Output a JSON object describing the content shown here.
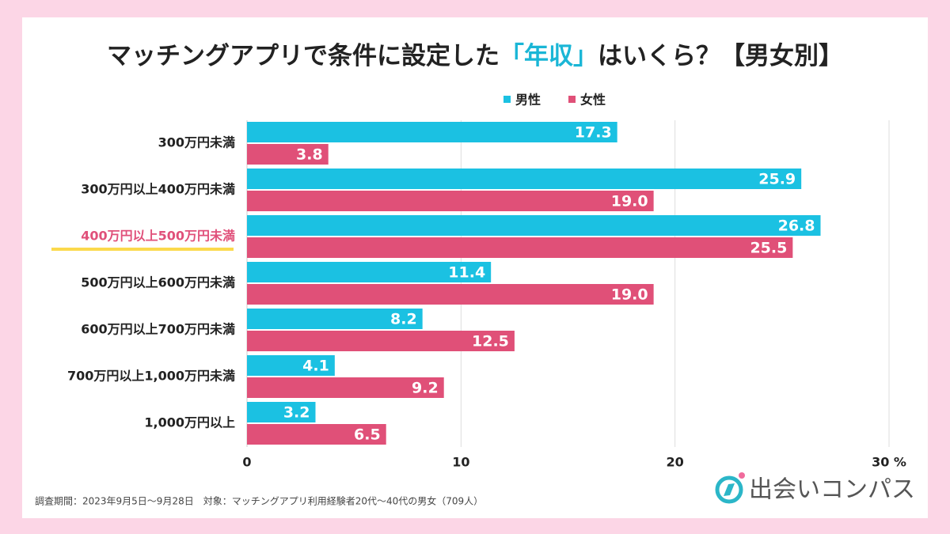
{
  "chart_data": {
    "type": "hbar",
    "title": [
      "マッチングアプリで条件に設定した",
      "「年収」",
      "はいくら？【男女別】"
    ],
    "title_highlight_color": "#1ab6d6",
    "categories": [
      "300万円未満",
      "300万円以上400万円未満",
      "400万円以上500万円未満",
      "500万円以上600万円未満",
      "600万円以上700万円未満",
      "700万円以上1,000万円未満",
      "1,000万円以上"
    ],
    "highlight_category": 2,
    "highlight_color": "#e0507a",
    "series": [
      {
        "name": "男性",
        "color": "#1bc1e2",
        "values": [
          17.3,
          25.9,
          26.8,
          11.4,
          8.2,
          4.1,
          3.2
        ],
        "value_labels": [
          "17.3",
          "25.9",
          "26.8",
          "11.4",
          "8.2",
          "4.1",
          "3.2"
        ]
      },
      {
        "name": "女性",
        "color": "#e05078",
        "values": [
          3.8,
          19.0,
          25.5,
          19.0,
          12.5,
          9.2,
          6.5
        ],
        "value_labels": [
          "3.8",
          "19.0",
          "25.5",
          "19.0",
          "12.5",
          "9.2",
          "6.5"
        ]
      }
    ],
    "xlim": [
      0,
      30
    ],
    "xticks": [
      0,
      10,
      20,
      {
        "value": 30,
        "label": "30 %"
      }
    ],
    "grid": true,
    "legend": "top",
    "footnote": "調査期間：2023年9月5日〜9月28日　対象：マッチングアプリ利用経験者20代〜40代の男女（709人）",
    "logo": "出会いコンパス"
  }
}
